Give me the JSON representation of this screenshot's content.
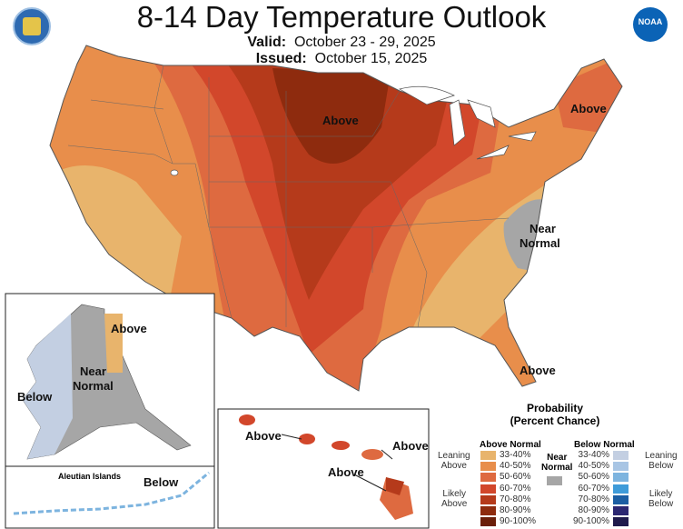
{
  "header": {
    "title": "8-14 Day Temperature Outlook",
    "valid_label": "Valid:",
    "valid_value": "October 23 - 29, 2025",
    "issued_label": "Issued:",
    "issued_value": "October 15, 2025"
  },
  "logos": {
    "left": "Department of Commerce seal",
    "right": "NOAA"
  },
  "map_labels": {
    "midwest": "Above",
    "northeast": "Above",
    "southeast_normal_1": "Near",
    "southeast_normal_2": "Normal",
    "florida": "Above",
    "alaska_above": "Above",
    "alaska_near_1": "Near",
    "alaska_near_2": "Normal",
    "alaska_below": "Below",
    "aleutian_title": "Aleutian Islands",
    "aleutian_below": "Below",
    "hawaii_above_1": "Above",
    "hawaii_above_2": "Above",
    "hawaii_above_3": "Above"
  },
  "legend": {
    "title_1": "Probability",
    "title_2": "(Percent Chance)",
    "above_header": "Above Normal",
    "below_header": "Below Normal",
    "near_1": "Near",
    "near_2": "Normal",
    "near_color": "#a6a6a6",
    "leaning_above_1": "Leaning",
    "leaning_above_2": "Above",
    "likely_above_1": "Likely",
    "likely_above_2": "Above",
    "leaning_below_1": "Leaning",
    "leaning_below_2": "Below",
    "likely_below_1": "Likely",
    "likely_below_2": "Below",
    "above": [
      {
        "range": "33-40%",
        "color": "#e8b46c"
      },
      {
        "range": "40-50%",
        "color": "#e88e4b"
      },
      {
        "range": "50-60%",
        "color": "#de6a40"
      },
      {
        "range": "60-70%",
        "color": "#d2472b"
      },
      {
        "range": "70-80%",
        "color": "#b53a1b"
      },
      {
        "range": "80-90%",
        "color": "#8e2b0e"
      },
      {
        "range": "90-100%",
        "color": "#6b1f0a"
      }
    ],
    "below": [
      {
        "range": "33-40%",
        "color": "#c3cfe2"
      },
      {
        "range": "40-50%",
        "color": "#a8c5e4"
      },
      {
        "range": "50-60%",
        "color": "#7db4df"
      },
      {
        "range": "60-70%",
        "color": "#3e9bd9"
      },
      {
        "range": "70-80%",
        "color": "#1c5ea3"
      },
      {
        "range": "80-90%",
        "color": "#2c2772"
      },
      {
        "range": "90-100%",
        "color": "#1f1a4c"
      }
    ]
  }
}
